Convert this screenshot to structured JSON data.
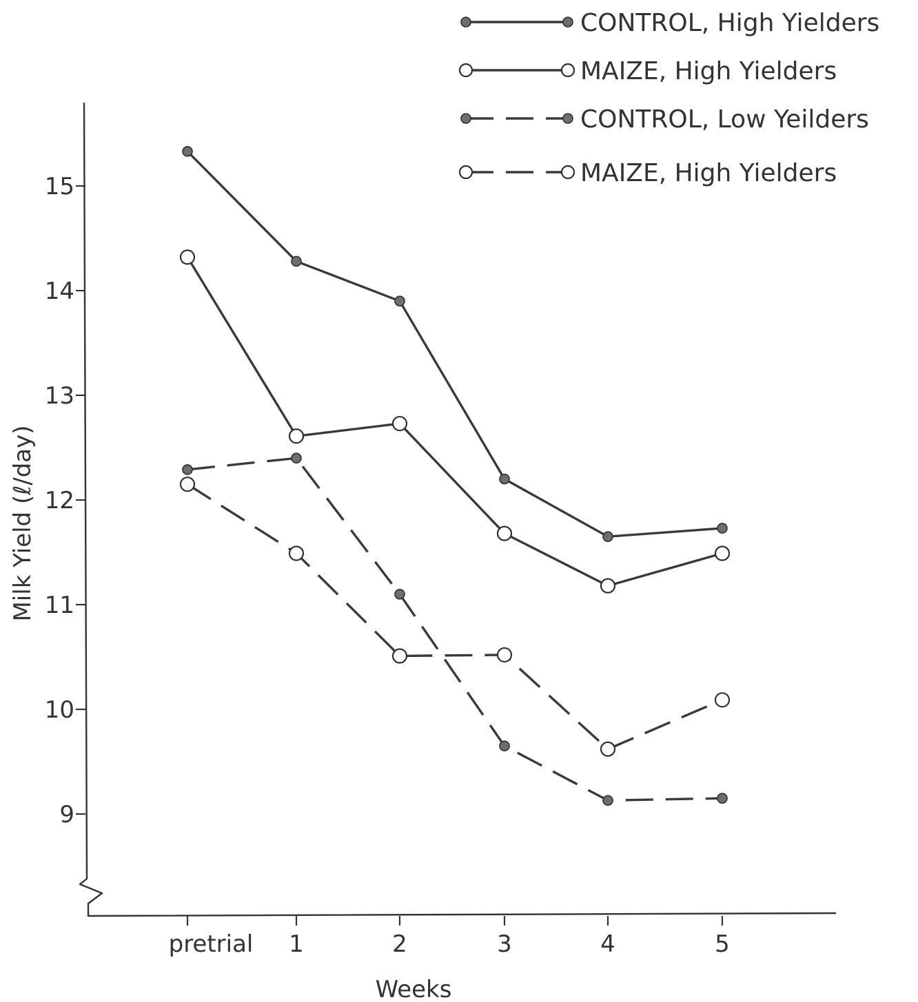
{
  "chart_data": {
    "type": "line",
    "title": "",
    "xlabel": "Weeks",
    "ylabel": "Milk Yield (ℓ/day)",
    "categories": [
      "pretrial",
      "1",
      "2",
      "3",
      "4",
      "5"
    ],
    "y_ticks": [
      9,
      10,
      11,
      12,
      13,
      14,
      15
    ],
    "ylim": [
      8.2,
      15.8
    ],
    "grid": false,
    "legend_position": "top-right",
    "series": [
      {
        "name": "CONTROL, High Yielders",
        "marker": "filled",
        "line_style": "solid",
        "values": [
          15.33,
          14.28,
          13.9,
          12.2,
          11.65,
          11.73
        ]
      },
      {
        "name": "MAIZE, High Yielders",
        "marker": "open",
        "line_style": "solid",
        "values": [
          14.32,
          12.61,
          12.73,
          11.68,
          11.18,
          11.49
        ]
      },
      {
        "name": "CONTROL, Low Yeilders",
        "marker": "filled",
        "line_style": "dashed",
        "values": [
          12.29,
          12.4,
          11.1,
          9.65,
          9.13,
          9.15
        ]
      },
      {
        "name": "MAIZE, High Yielders",
        "marker": "open",
        "line_style": "dashed",
        "values": [
          12.15,
          11.49,
          10.51,
          10.52,
          9.62,
          10.09
        ]
      }
    ]
  }
}
